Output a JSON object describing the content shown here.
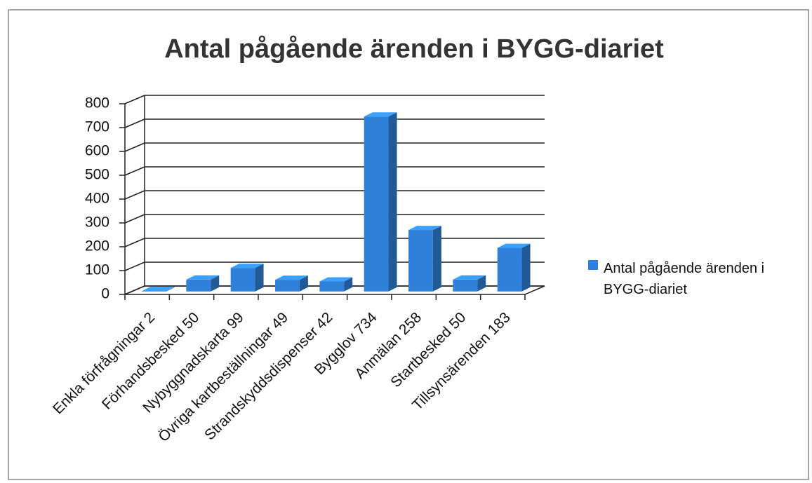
{
  "chart_data": {
    "type": "bar",
    "title": "Antal pågående ärenden i BYGG-diariet",
    "categories": [
      "Enkla förfrågningar 2",
      "Förhandsbesked 50",
      "Nybyggnadskarta 99",
      "Övriga kartbeställningar 49",
      "Strandskyddsdispenser 42",
      "Bygglov 734",
      "Anmälan 258",
      "Startbesked 50",
      "Tillsynsärenden 183"
    ],
    "series": [
      {
        "name": "Antal pågående ärenden i BYGG-diariet",
        "color": "#2f80d8",
        "values": [
          2,
          50,
          99,
          49,
          42,
          734,
          258,
          50,
          183
        ]
      }
    ],
    "ylim": [
      0,
      800
    ],
    "yticks": [
      0,
      100,
      200,
      300,
      400,
      500,
      600,
      700,
      800
    ],
    "grid": true,
    "legend": "right"
  }
}
